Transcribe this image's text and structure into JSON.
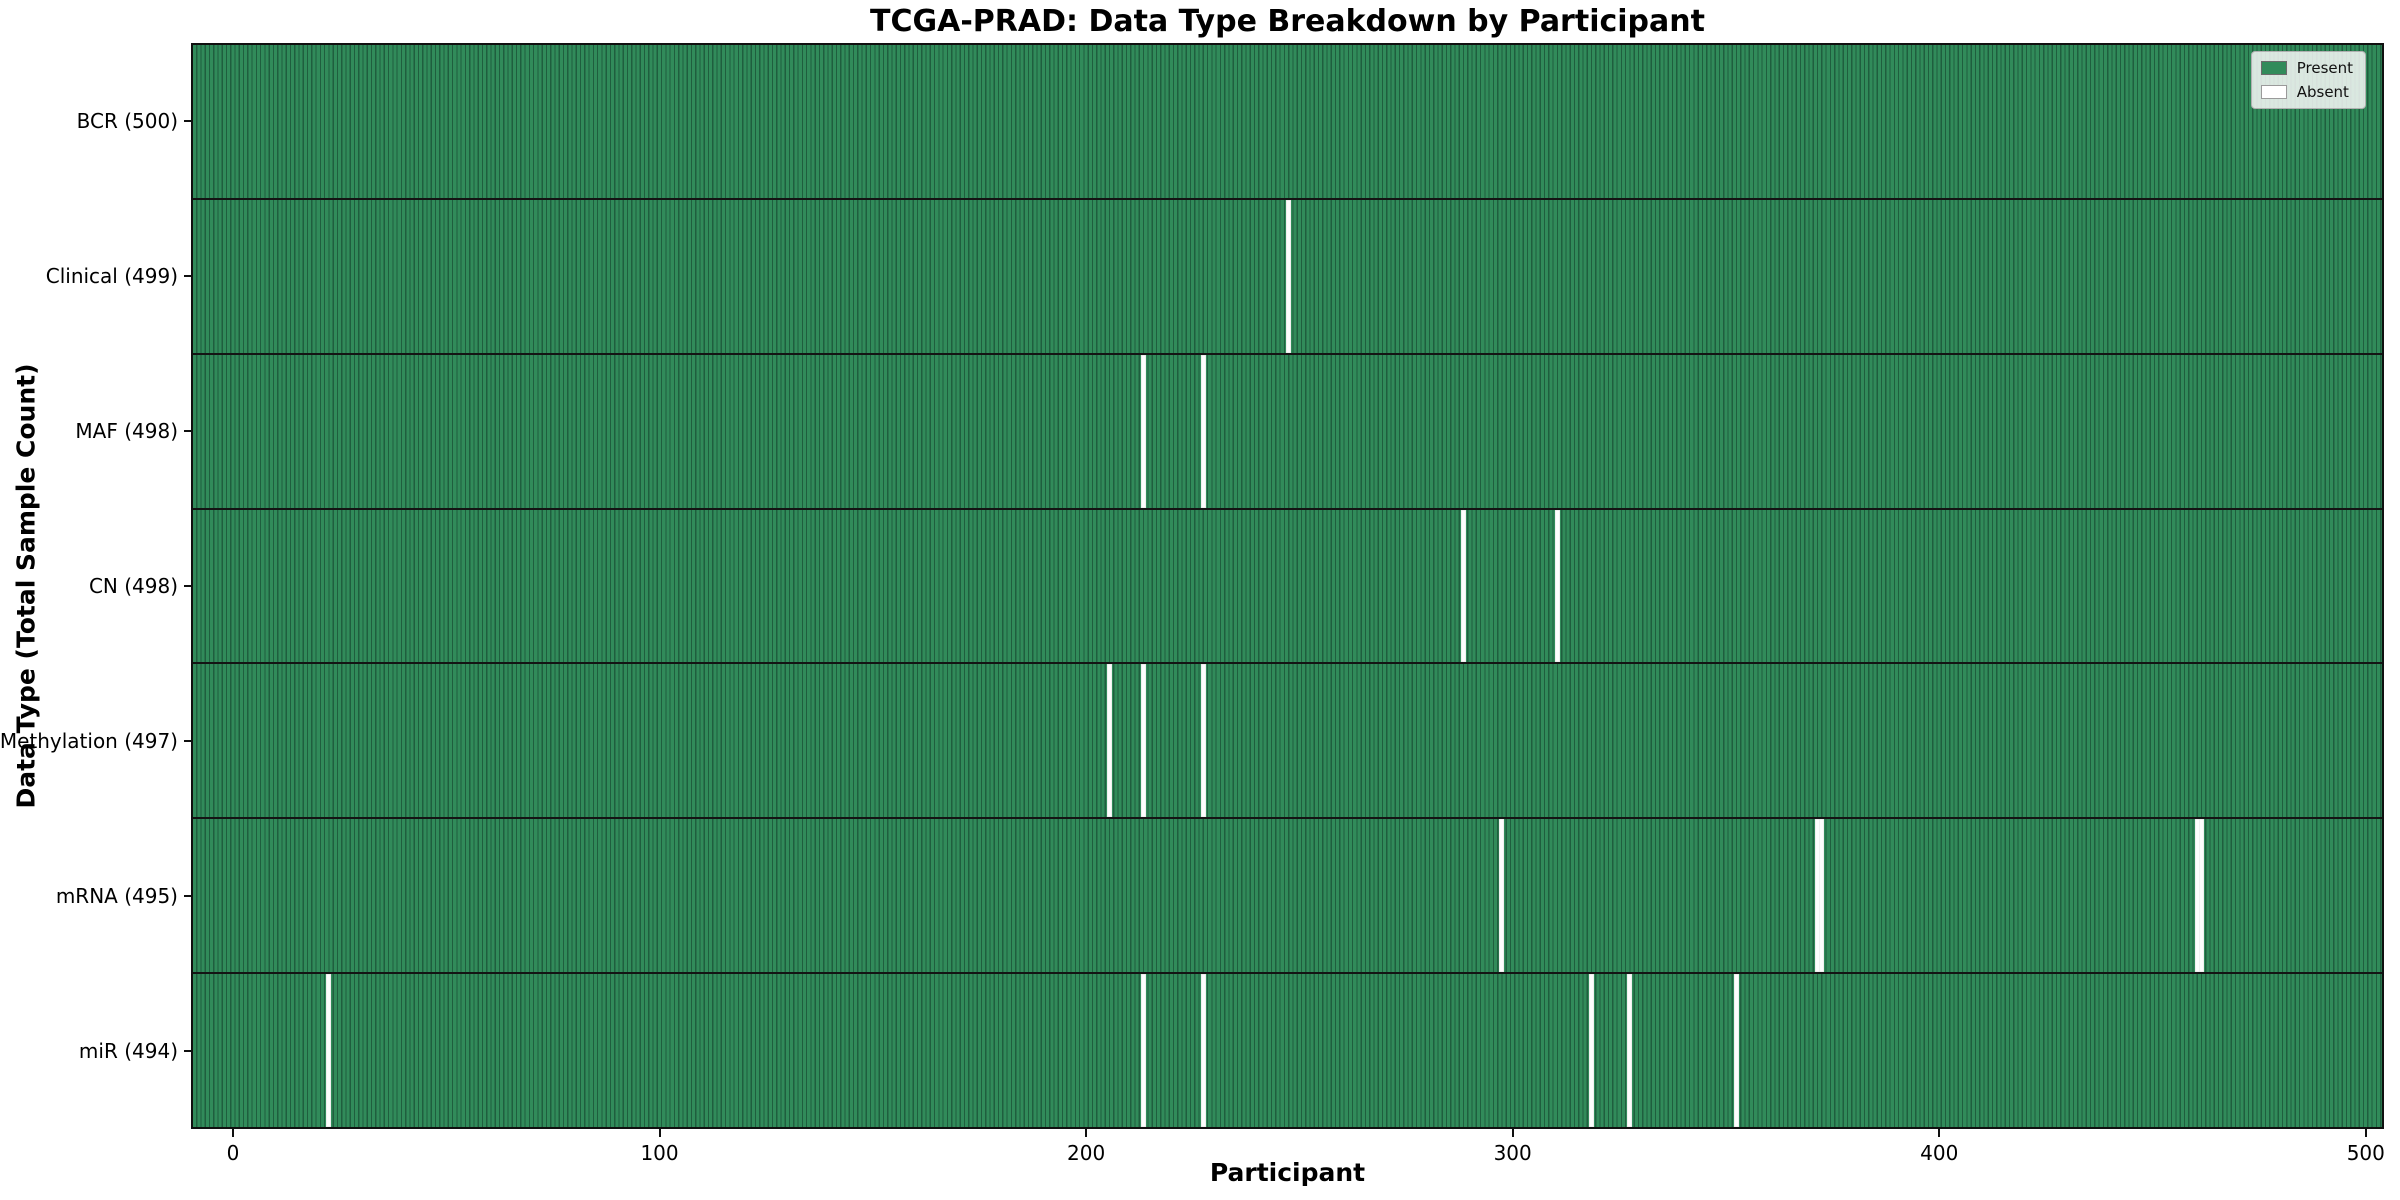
{
  "chart_data": {
    "type": "heatmap",
    "title": "TCGA-PRAD: Data Type Breakdown by Participant",
    "xlabel": "Participant",
    "ylabel": "Data Type (Total Sample Count)",
    "x_ticks": [
      0,
      100,
      200,
      300,
      400,
      500
    ],
    "x_range": [
      0,
      500
    ],
    "n_participants": 500,
    "grid": false,
    "legend_position": "upper-right",
    "legend": [
      {
        "label": "Present",
        "color": "#318b5a"
      },
      {
        "label": "Absent",
        "color": "#ffffff"
      }
    ],
    "colors": {
      "present_fill": "#318b5a",
      "cell_edge": "#1f5e3e",
      "absent": "#ffffff",
      "row_separator": "#141414"
    },
    "rows": [
      {
        "label": "BCR (500)",
        "data_type": "BCR",
        "total": 500,
        "absent_participants": []
      },
      {
        "label": "Clinical (499)",
        "data_type": "Clinical",
        "total": 499,
        "absent_participants": [
          247
        ]
      },
      {
        "label": "MAF (498)",
        "data_type": "MAF",
        "total": 498,
        "absent_participants": [
          213,
          227
        ]
      },
      {
        "label": "CN (498)",
        "data_type": "CN",
        "total": 498,
        "absent_participants": [
          288,
          310
        ]
      },
      {
        "label": "Methylation (497)",
        "data_type": "Methylation",
        "total": 497,
        "absent_participants": [
          205,
          213,
          227
        ]
      },
      {
        "label": "mRNA (495)",
        "data_type": "mRNA",
        "total": 495,
        "absent_participants": [
          297,
          371,
          372,
          460,
          461
        ]
      },
      {
        "label": "miR (494)",
        "data_type": "miR",
        "total": 494,
        "absent_participants": [
          22,
          213,
          227,
          318,
          327,
          352
        ]
      }
    ]
  }
}
